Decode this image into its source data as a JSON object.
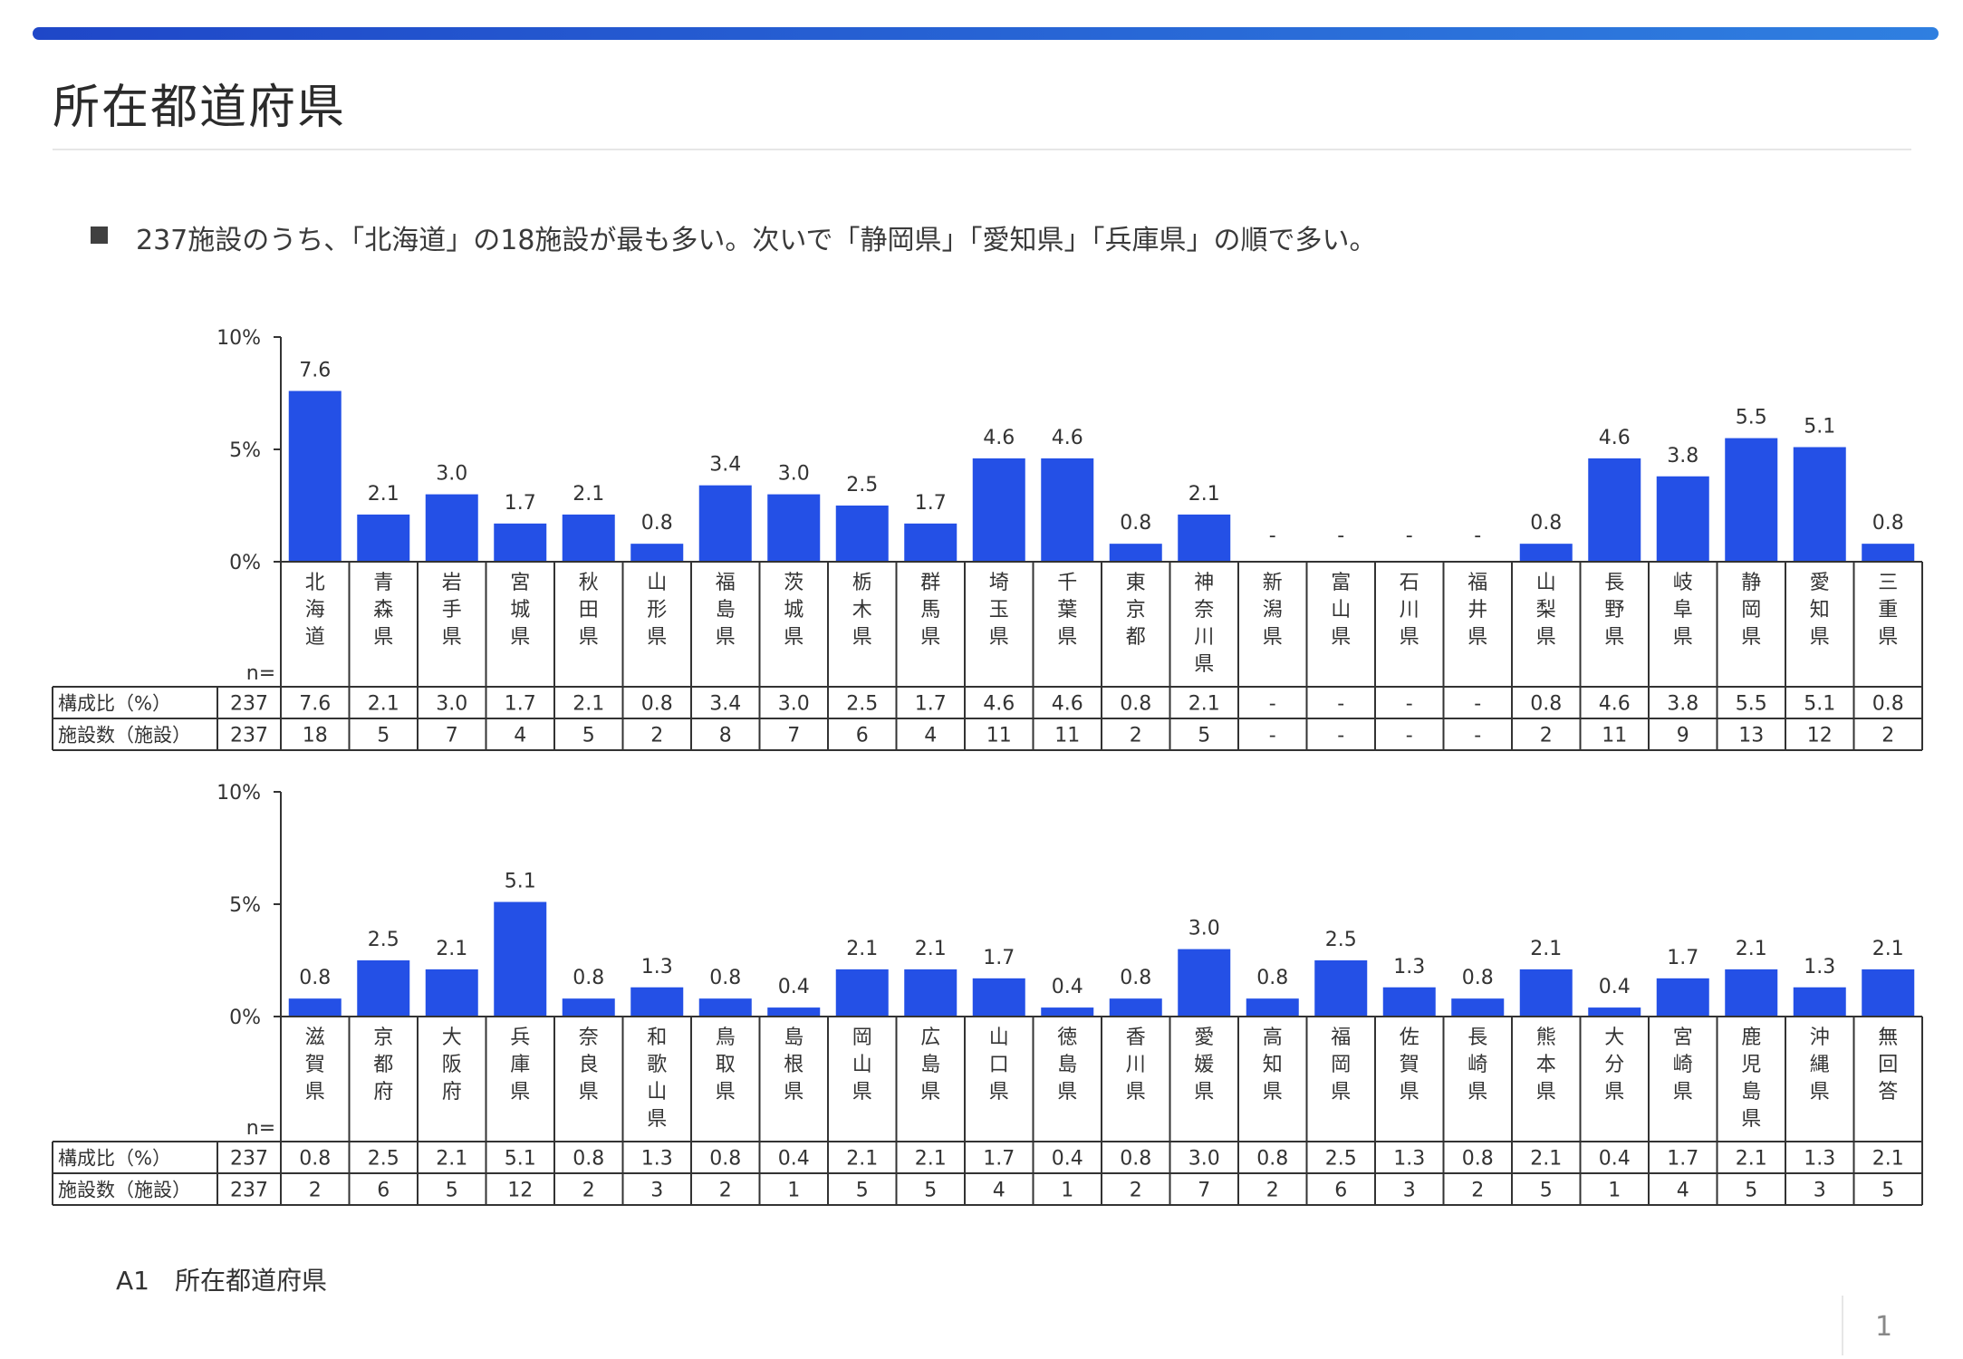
{
  "page": {
    "title": "所在都道府県",
    "bullet": "237施設のうち、「北海道」の18施設が最も多い。次いで「静岡県」「愛知県」「兵庫県」の順で多い。",
    "footer_label": "A1　所在都道府県",
    "page_number": "1",
    "accent_color": "#2450e6"
  },
  "chart_data": [
    {
      "type": "bar",
      "ylim": [
        0,
        10
      ],
      "y_ticks": [
        "0%",
        "5%",
        "10%"
      ],
      "n_label": "n=",
      "row_labels": [
        "構成比（%）",
        "施設数（施設）"
      ],
      "total_pct": "237",
      "total_count": "237",
      "categories": [
        "北海道",
        "青森県",
        "岩手県",
        "宮城県",
        "秋田県",
        "山形県",
        "福島県",
        "茨城県",
        "栃木県",
        "群馬県",
        "埼玉県",
        "千葉県",
        "東京都",
        "神奈川県",
        "新潟県",
        "富山県",
        "石川県",
        "福井県",
        "山梨県",
        "長野県",
        "岐阜県",
        "静岡県",
        "愛知県",
        "三重県"
      ],
      "values": [
        7.6,
        2.1,
        3.0,
        1.7,
        2.1,
        0.8,
        3.4,
        3.0,
        2.5,
        1.7,
        4.6,
        4.6,
        0.8,
        2.1,
        null,
        null,
        null,
        null,
        0.8,
        4.6,
        3.8,
        5.5,
        5.1,
        0.8
      ],
      "value_labels": [
        "7.6",
        "2.1",
        "3.0",
        "1.7",
        "2.1",
        "0.8",
        "3.4",
        "3.0",
        "2.5",
        "1.7",
        "4.6",
        "4.6",
        "0.8",
        "2.1",
        "-",
        "-",
        "-",
        "-",
        "0.8",
        "4.6",
        "3.8",
        "5.5",
        "5.1",
        "0.8"
      ],
      "counts": [
        "18",
        "5",
        "7",
        "4",
        "5",
        "2",
        "8",
        "7",
        "6",
        "4",
        "11",
        "11",
        "2",
        "5",
        "-",
        "-",
        "-",
        "-",
        "2",
        "11",
        "9",
        "13",
        "12",
        "2"
      ]
    },
    {
      "type": "bar",
      "ylim": [
        0,
        10
      ],
      "y_ticks": [
        "0%",
        "5%",
        "10%"
      ],
      "n_label": "n=",
      "row_labels": [
        "構成比（%）",
        "施設数（施設）"
      ],
      "total_pct": "237",
      "total_count": "237",
      "categories": [
        "滋賀県",
        "京都府",
        "大阪府",
        "兵庫県",
        "奈良県",
        "和歌山県",
        "鳥取県",
        "島根県",
        "岡山県",
        "広島県",
        "山口県",
        "徳島県",
        "香川県",
        "愛媛県",
        "高知県",
        "福岡県",
        "佐賀県",
        "長崎県",
        "熊本県",
        "大分県",
        "宮崎県",
        "鹿児島県",
        "沖縄県",
        "無回答"
      ],
      "values": [
        0.8,
        2.5,
        2.1,
        5.1,
        0.8,
        1.3,
        0.8,
        0.4,
        2.1,
        2.1,
        1.7,
        0.4,
        0.8,
        3.0,
        0.8,
        2.5,
        1.3,
        0.8,
        2.1,
        0.4,
        1.7,
        2.1,
        1.3,
        2.1
      ],
      "value_labels": [
        "0.8",
        "2.5",
        "2.1",
        "5.1",
        "0.8",
        "1.3",
        "0.8",
        "0.4",
        "2.1",
        "2.1",
        "1.7",
        "0.4",
        "0.8",
        "3.0",
        "0.8",
        "2.5",
        "1.3",
        "0.8",
        "2.1",
        "0.4",
        "1.7",
        "2.1",
        "1.3",
        "2.1"
      ],
      "counts": [
        "2",
        "6",
        "5",
        "12",
        "2",
        "3",
        "2",
        "1",
        "5",
        "5",
        "4",
        "1",
        "2",
        "7",
        "2",
        "6",
        "3",
        "2",
        "5",
        "1",
        "4",
        "5",
        "3",
        "5"
      ]
    }
  ]
}
